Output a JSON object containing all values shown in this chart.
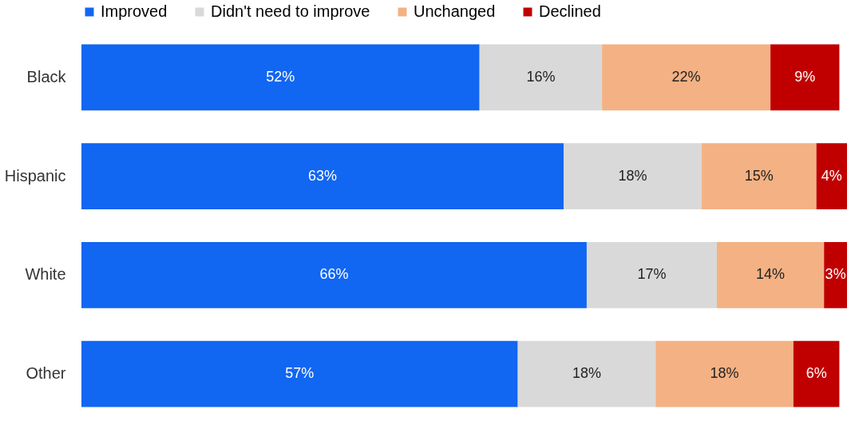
{
  "chart_data": {
    "type": "bar",
    "orientation": "horizontal",
    "stacked": true,
    "categories": [
      "Black",
      "Hispanic",
      "White",
      "Other"
    ],
    "series": [
      {
        "name": "Improved",
        "color": "#1166f2",
        "values": [
          52,
          63,
          66,
          57
        ],
        "value_labels": [
          "52%",
          "63%",
          "66%",
          "57%"
        ]
      },
      {
        "name": "Didn't need to improve",
        "color": "#d9d9d9",
        "values": [
          16,
          18,
          17,
          18
        ],
        "value_labels": [
          "16%",
          "18%",
          "17%",
          "18%"
        ]
      },
      {
        "name": "Unchanged",
        "color": "#f4b183",
        "values": [
          22,
          15,
          14,
          18
        ],
        "value_labels": [
          "22%",
          "15%",
          "14%",
          "18%"
        ]
      },
      {
        "name": "Declined",
        "color": "#c00000",
        "values": [
          9,
          4,
          3,
          6
        ],
        "value_labels": [
          "9%",
          "4%",
          "3%",
          "6%"
        ]
      }
    ],
    "legend": "top",
    "grid": false,
    "tick_labels": "y"
  }
}
